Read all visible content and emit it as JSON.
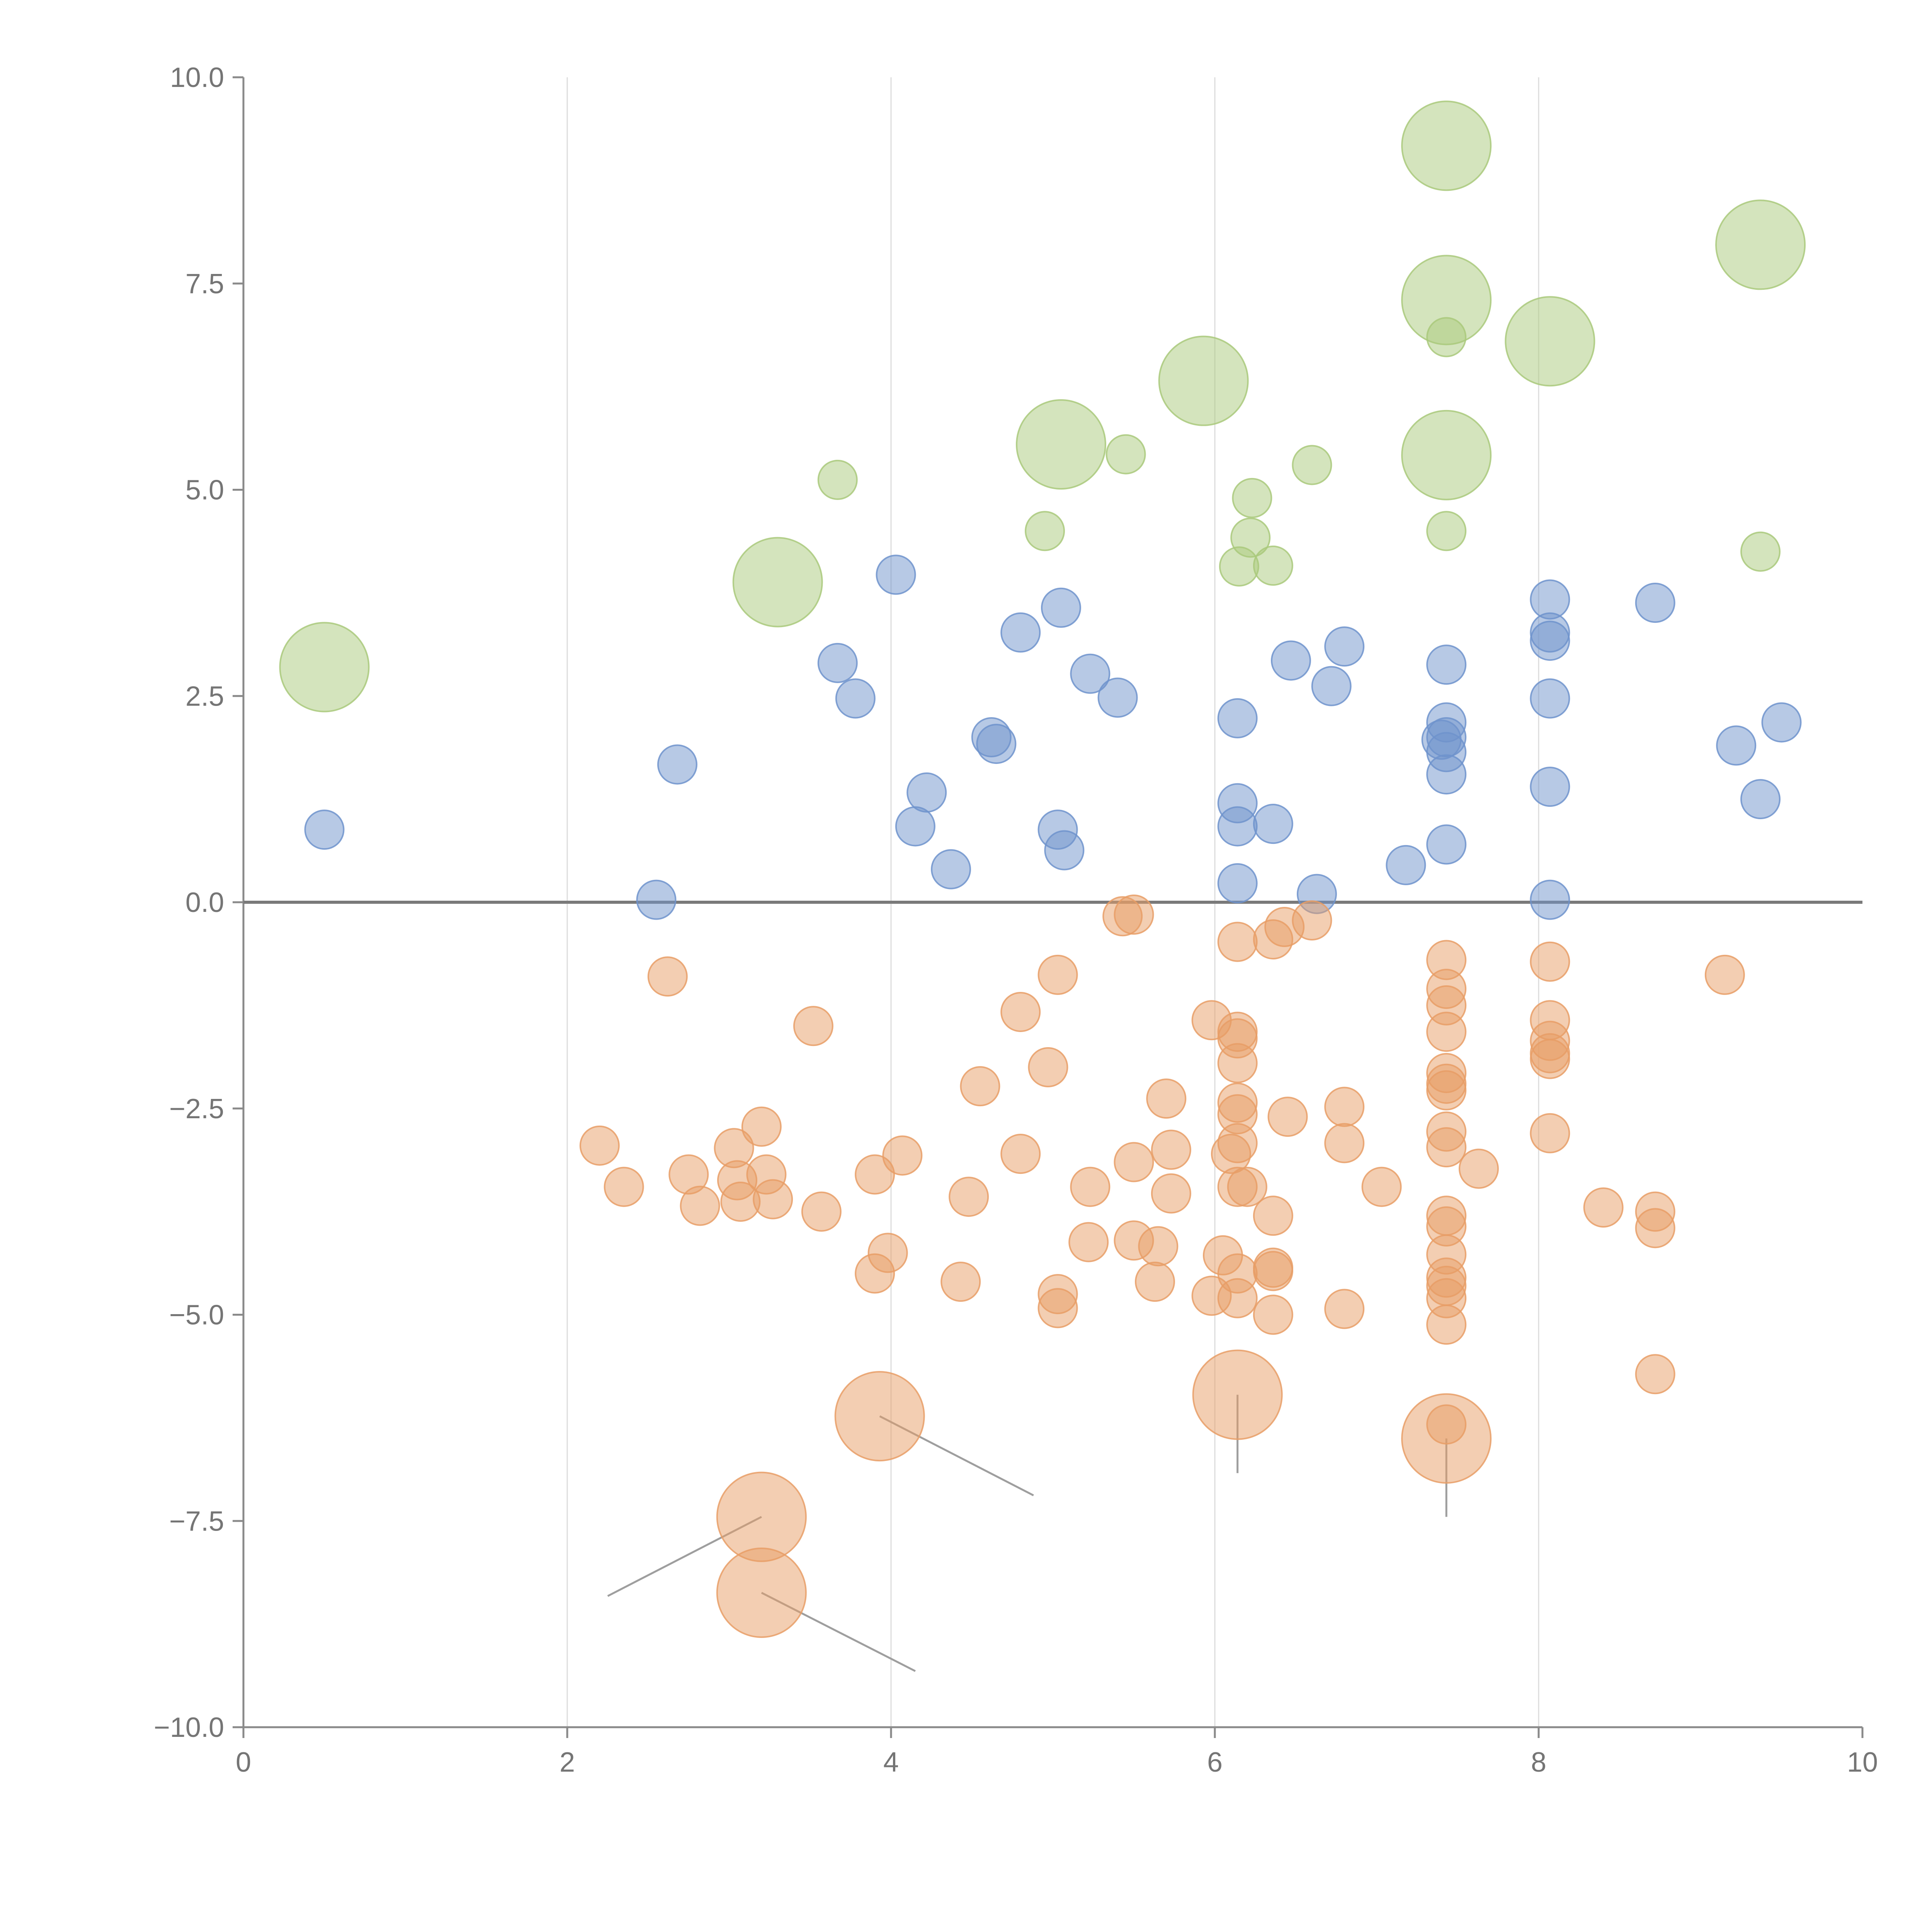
{
  "chart_data": {
    "type": "scatter",
    "title": "",
    "xlabel": "",
    "ylabel": "",
    "xlim": [
      0,
      10
    ],
    "ylim": [
      -10,
      10
    ],
    "x_ticks": [
      0,
      2,
      4,
      6,
      8,
      10
    ],
    "x_tick_labels": [
      "0",
      "2",
      "4",
      "6",
      "8",
      "10"
    ],
    "y_ticks": [
      -10,
      -7.5,
      -5,
      -2.5,
      0,
      2.5,
      5,
      7.5,
      10
    ],
    "y_tick_labels": [
      "−10.0",
      "−7.5",
      "−5.0",
      "−2.5",
      "0.0",
      "2.5",
      "5.0",
      "7.5",
      "10.0"
    ],
    "vertical_gridlines_at": [
      2,
      4,
      6,
      8
    ],
    "zero_line": true,
    "series": [
      {
        "name": "green",
        "color": "#a9c97b",
        "points": [
          [
            0.5,
            2.85,
            3
          ],
          [
            3.3,
            3.88,
            3
          ],
          [
            3.67,
            5.12,
            1
          ],
          [
            4.95,
            4.5,
            1
          ],
          [
            5.05,
            5.55,
            3
          ],
          [
            5.45,
            5.43,
            1
          ],
          [
            5.93,
            6.32,
            3
          ],
          [
            6.15,
            4.07,
            1
          ],
          [
            6.22,
            4.42,
            1
          ],
          [
            6.23,
            4.9,
            1
          ],
          [
            6.36,
            4.08,
            1
          ],
          [
            6.6,
            5.3,
            1
          ],
          [
            7.43,
            9.17,
            3
          ],
          [
            7.43,
            7.3,
            3
          ],
          [
            7.43,
            6.85,
            1
          ],
          [
            7.43,
            5.42,
            3
          ],
          [
            7.43,
            4.5,
            1
          ],
          [
            8.07,
            6.8,
            3
          ],
          [
            9.37,
            7.97,
            3
          ],
          [
            9.37,
            4.25,
            1
          ]
        ]
      },
      {
        "name": "blue",
        "color": "#6f93cc",
        "points": [
          [
            0.5,
            0.88,
            1
          ],
          [
            2.55,
            0.03,
            1
          ],
          [
            2.68,
            1.67,
            1
          ],
          [
            3.67,
            2.9,
            1
          ],
          [
            3.78,
            2.47,
            1
          ],
          [
            4.03,
            3.97,
            1
          ],
          [
            4.15,
            0.92,
            1
          ],
          [
            4.22,
            1.33,
            1
          ],
          [
            4.37,
            0.4,
            1
          ],
          [
            4.62,
            2.0,
            1
          ],
          [
            4.65,
            1.92,
            1
          ],
          [
            4.8,
            3.27,
            1
          ],
          [
            5.03,
            0.88,
            1
          ],
          [
            5.05,
            3.57,
            1
          ],
          [
            5.07,
            0.63,
            1
          ],
          [
            5.23,
            2.77,
            1
          ],
          [
            5.4,
            2.48,
            1
          ],
          [
            6.14,
            2.23,
            1
          ],
          [
            6.14,
            1.2,
            1
          ],
          [
            6.14,
            0.92,
            1
          ],
          [
            6.14,
            0.23,
            1
          ],
          [
            6.36,
            0.95,
            1
          ],
          [
            6.47,
            2.93,
            1
          ],
          [
            6.63,
            0.1,
            1
          ],
          [
            6.72,
            2.62,
            1
          ],
          [
            6.8,
            3.1,
            1
          ],
          [
            7.18,
            0.45,
            1
          ],
          [
            7.4,
            1.97,
            1
          ],
          [
            7.43,
            2.88,
            1
          ],
          [
            7.43,
            2.18,
            1
          ],
          [
            7.43,
            2.0,
            1
          ],
          [
            7.43,
            1.82,
            1
          ],
          [
            7.43,
            1.55,
            1
          ],
          [
            7.43,
            0.7,
            1
          ],
          [
            8.07,
            3.67,
            1
          ],
          [
            8.07,
            3.27,
            1
          ],
          [
            8.07,
            3.17,
            1
          ],
          [
            8.07,
            2.47,
            1
          ],
          [
            8.07,
            1.4,
            1
          ],
          [
            8.07,
            0.03,
            1
          ],
          [
            8.72,
            3.63,
            1
          ],
          [
            9.22,
            1.9,
            1
          ],
          [
            9.37,
            1.25,
            1
          ],
          [
            9.5,
            2.18,
            1
          ]
        ]
      },
      {
        "name": "orange",
        "color": "#e89e66",
        "points": [
          [
            2.2,
            -2.95,
            1
          ],
          [
            2.35,
            -3.45,
            1
          ],
          [
            2.62,
            -0.9,
            1
          ],
          [
            2.75,
            -3.3,
            1
          ],
          [
            2.82,
            -3.68,
            1
          ],
          [
            3.03,
            -2.98,
            1
          ],
          [
            3.05,
            -3.37,
            1
          ],
          [
            3.07,
            -3.63,
            1
          ],
          [
            3.2,
            -2.72,
            1
          ],
          [
            3.23,
            -3.3,
            1
          ],
          [
            3.27,
            -3.6,
            1
          ],
          [
            3.52,
            -1.5,
            1
          ],
          [
            3.57,
            -3.75,
            1
          ],
          [
            3.9,
            -3.3,
            1
          ],
          [
            3.9,
            -4.5,
            1
          ],
          [
            3.98,
            -4.25,
            1
          ],
          [
            4.07,
            -3.07,
            1
          ],
          [
            4.43,
            -4.6,
            1
          ],
          [
            4.48,
            -3.57,
            1
          ],
          [
            4.55,
            -2.23,
            1
          ],
          [
            4.8,
            -3.05,
            1
          ],
          [
            4.8,
            -1.33,
            1
          ],
          [
            4.97,
            -2.0,
            1
          ],
          [
            5.03,
            -0.88,
            1
          ],
          [
            5.03,
            -4.75,
            1
          ],
          [
            5.03,
            -4.92,
            1
          ],
          [
            5.22,
            -4.12,
            1
          ],
          [
            5.23,
            -3.45,
            1
          ],
          [
            5.43,
            -0.17,
            1
          ],
          [
            5.5,
            -0.15,
            1
          ],
          [
            5.5,
            -3.15,
            1
          ],
          [
            5.5,
            -4.1,
            1
          ],
          [
            5.63,
            -4.6,
            1
          ],
          [
            5.65,
            -4.17,
            1
          ],
          [
            5.7,
            -2.38,
            1
          ],
          [
            5.73,
            -3.0,
            1
          ],
          [
            5.73,
            -3.53,
            1
          ],
          [
            5.98,
            -1.43,
            1
          ],
          [
            5.98,
            -4.77,
            1
          ],
          [
            6.05,
            -4.28,
            1
          ],
          [
            6.1,
            -3.05,
            1
          ],
          [
            6.14,
            -0.48,
            1
          ],
          [
            6.14,
            -1.57,
            1
          ],
          [
            6.14,
            -1.65,
            1
          ],
          [
            6.14,
            -1.95,
            1
          ],
          [
            6.14,
            -2.43,
            1
          ],
          [
            6.14,
            -2.57,
            1
          ],
          [
            6.14,
            -2.92,
            1
          ],
          [
            6.14,
            -3.45,
            1
          ],
          [
            6.14,
            -4.5,
            1
          ],
          [
            6.14,
            -4.8,
            1
          ],
          [
            6.2,
            -3.45,
            1
          ],
          [
            6.36,
            -0.45,
            1
          ],
          [
            6.36,
            -3.8,
            1
          ],
          [
            6.36,
            -4.43,
            1
          ],
          [
            6.36,
            -4.47,
            1
          ],
          [
            6.36,
            -5.0,
            1
          ],
          [
            6.43,
            -0.3,
            1
          ],
          [
            6.45,
            -2.6,
            1
          ],
          [
            6.6,
            -0.22,
            1
          ],
          [
            6.8,
            -2.48,
            1
          ],
          [
            6.8,
            -2.92,
            1
          ],
          [
            6.8,
            -4.93,
            1
          ],
          [
            7.03,
            -3.45,
            1
          ],
          [
            7.43,
            -0.7,
            1
          ],
          [
            7.43,
            -1.05,
            1
          ],
          [
            7.43,
            -1.25,
            1
          ],
          [
            7.43,
            -1.57,
            1
          ],
          [
            7.43,
            -2.07,
            1
          ],
          [
            7.43,
            -2.2,
            1
          ],
          [
            7.43,
            -2.28,
            1
          ],
          [
            7.43,
            -2.78,
            1
          ],
          [
            7.43,
            -2.97,
            1
          ],
          [
            7.43,
            -3.8,
            1
          ],
          [
            7.43,
            -3.93,
            1
          ],
          [
            7.43,
            -4.27,
            1
          ],
          [
            7.43,
            -4.55,
            1
          ],
          [
            7.43,
            -4.65,
            1
          ],
          [
            7.43,
            -4.8,
            1
          ],
          [
            7.43,
            -5.12,
            1
          ],
          [
            7.43,
            -6.33,
            1
          ],
          [
            7.63,
            -3.23,
            1
          ],
          [
            8.07,
            -0.72,
            1
          ],
          [
            8.07,
            -1.43,
            1
          ],
          [
            8.07,
            -1.68,
            1
          ],
          [
            8.07,
            -1.83,
            1
          ],
          [
            8.07,
            -1.9,
            1
          ],
          [
            8.07,
            -2.8,
            1
          ],
          [
            8.4,
            -3.7,
            1
          ],
          [
            8.72,
            -3.75,
            1
          ],
          [
            8.72,
            -3.95,
            1
          ],
          [
            8.72,
            -5.72,
            1
          ],
          [
            9.15,
            -0.88,
            1
          ],
          [
            3.93,
            -6.23,
            3
          ],
          [
            3.2,
            -7.45,
            3
          ],
          [
            3.2,
            -8.37,
            3
          ],
          [
            6.14,
            -5.97,
            3
          ],
          [
            7.43,
            -6.5,
            3
          ]
        ]
      }
    ]
  }
}
